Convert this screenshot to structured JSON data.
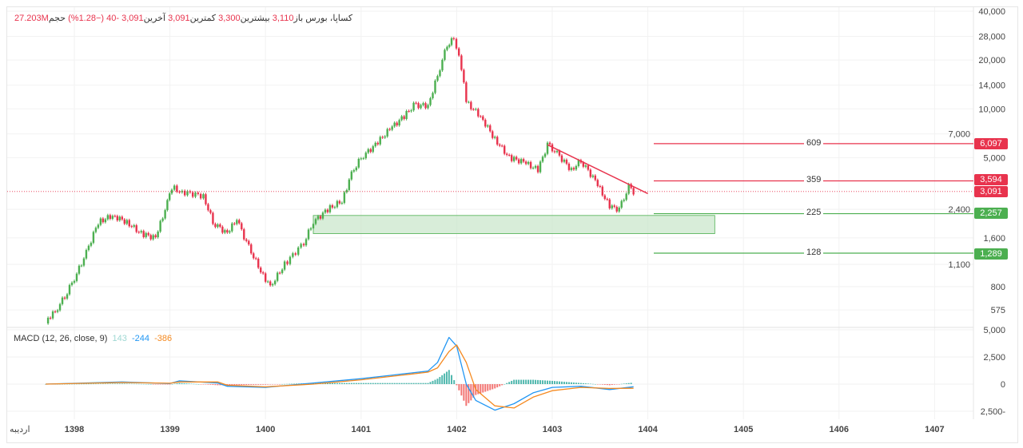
{
  "header": {
    "symbol": "کساپا، بورس",
    "open_label": "باز",
    "open": "3,110",
    "high_label": "بیشترین",
    "high": "3,300",
    "low_label": "کمترین",
    "low": "3,091",
    "last_label": "آخرین",
    "last": "3,091",
    "change": "-40",
    "change_pct": "(−1.28%)",
    "volume_label": "حجم",
    "volume": "27.203M"
  },
  "macd_legend": {
    "title": "MACD (12, 26, close, 9)",
    "hist": "143",
    "macd": "-244",
    "signal": "-386"
  },
  "colors": {
    "up": "#4caf50",
    "down": "#e8334d",
    "macd": "#2196f3",
    "signal": "#f5891f",
    "hist_up": "#26a69a",
    "hist_down": "#ef5350",
    "zone": "#c8e6c9"
  },
  "levels": [
    {
      "label": "609",
      "price_tag": "6,097",
      "value": 6097,
      "color": "#e8334d"
    },
    {
      "label": "359",
      "price_tag": "3,594",
      "value": 3594,
      "color": "#e8334d"
    },
    {
      "label": "225",
      "price_tag": "2,257",
      "value": 2257,
      "color": "#4caf50"
    },
    {
      "label": "128",
      "price_tag": "1,289",
      "value": 1289,
      "color": "#4caf50"
    }
  ],
  "last_price_tag": "3,091",
  "chart_data": [
    {
      "type": "candlestick",
      "yscale": "log",
      "y_ticks": [
        "40,000",
        "28,000",
        "20,000",
        "14,000",
        "10,000",
        "7,000",
        "5,000",
        "2,400",
        "1,600",
        "1,100",
        "800",
        "575"
      ],
      "y_tick_values": [
        40000,
        28000,
        20000,
        14000,
        10000,
        7000,
        5000,
        2400,
        1600,
        1100,
        800,
        575
      ],
      "x_ticks": [
        "اردیبه",
        "1398",
        "1399",
        "1400",
        "1401",
        "1402",
        "1403",
        "1404",
        "1405",
        "1406",
        "1407"
      ],
      "x_tick_values": [
        1397.35,
        1398,
        1399,
        1400,
        1401,
        1402,
        1403,
        1404,
        1405,
        1406,
        1407
      ],
      "closes": [
        [
          1397.7,
          500
        ],
        [
          1397.8,
          560
        ],
        [
          1397.9,
          700
        ],
        [
          1398.0,
          900
        ],
        [
          1398.1,
          1200
        ],
        [
          1398.25,
          2000
        ],
        [
          1398.4,
          2200
        ],
        [
          1398.55,
          2000
        ],
        [
          1398.7,
          1700
        ],
        [
          1398.85,
          1600
        ],
        [
          1398.95,
          2400
        ],
        [
          1399.02,
          3300
        ],
        [
          1399.1,
          3100
        ],
        [
          1399.35,
          2900
        ],
        [
          1399.45,
          2000
        ],
        [
          1399.6,
          1700
        ],
        [
          1399.7,
          2100
        ],
        [
          1399.8,
          1500
        ],
        [
          1399.95,
          1000
        ],
        [
          1400.05,
          800
        ],
        [
          1400.2,
          1100
        ],
        [
          1400.4,
          1500
        ],
        [
          1400.5,
          2000
        ],
        [
          1400.65,
          2400
        ],
        [
          1400.8,
          2700
        ],
        [
          1400.9,
          4000
        ],
        [
          1401.0,
          5000
        ],
        [
          1401.15,
          6000
        ],
        [
          1401.3,
          7500
        ],
        [
          1401.45,
          9000
        ],
        [
          1401.55,
          10500
        ],
        [
          1401.7,
          10500
        ],
        [
          1401.8,
          16000
        ],
        [
          1401.9,
          25000
        ],
        [
          1401.97,
          27000
        ],
        [
          1402.05,
          18000
        ],
        [
          1402.1,
          11000
        ],
        [
          1402.25,
          9000
        ],
        [
          1402.4,
          6500
        ],
        [
          1402.55,
          5000
        ],
        [
          1402.7,
          4700
        ],
        [
          1402.85,
          4200
        ],
        [
          1402.95,
          6000
        ],
        [
          1403.05,
          5300
        ],
        [
          1403.2,
          4200
        ],
        [
          1403.3,
          4800
        ],
        [
          1403.45,
          3600
        ],
        [
          1403.6,
          2500
        ],
        [
          1403.7,
          2400
        ],
        [
          1403.8,
          3300
        ],
        [
          1403.85,
          3091
        ]
      ],
      "trendline": [
        [
          1402.95,
          6000
        ],
        [
          1404.0,
          3000
        ]
      ],
      "support_zone": {
        "x": [
          1400.5,
          1404.7
        ],
        "y": [
          1700,
          2200
        ]
      }
    },
    {
      "type": "line",
      "name": "MACD (12, 26, close, 9)",
      "y_ticks": [
        "5,000",
        "2,500",
        "0",
        "2,500-"
      ],
      "y_tick_values": [
        5000,
        2500,
        0,
        -2500
      ],
      "points": [
        [
          1397.7,
          0,
          0
        ],
        [
          1398.5,
          200,
          150
        ],
        [
          1399.0,
          50,
          80
        ],
        [
          1399.1,
          300,
          200
        ],
        [
          1399.5,
          100,
          200
        ],
        [
          1399.6,
          -200,
          -100
        ],
        [
          1400.0,
          -300,
          -250
        ],
        [
          1400.5,
          100,
          0
        ],
        [
          1401.0,
          500,
          400
        ],
        [
          1401.3,
          800,
          700
        ],
        [
          1401.5,
          1000,
          900
        ],
        [
          1401.7,
          1200,
          1100
        ],
        [
          1401.8,
          2000,
          1500
        ],
        [
          1401.92,
          4300,
          3000
        ],
        [
          1402.0,
          3500,
          3600
        ],
        [
          1402.1,
          0,
          2000
        ],
        [
          1402.2,
          -1500,
          -500
        ],
        [
          1402.4,
          -2400,
          -2000
        ],
        [
          1402.6,
          -1800,
          -2200
        ],
        [
          1402.8,
          -800,
          -1200
        ],
        [
          1403.0,
          -300,
          -600
        ],
        [
          1403.3,
          -200,
          -300
        ],
        [
          1403.6,
          -500,
          -400
        ],
        [
          1403.85,
          -244,
          -386
        ]
      ],
      "point_fields": [
        "year",
        "macd",
        "signal"
      ]
    }
  ]
}
